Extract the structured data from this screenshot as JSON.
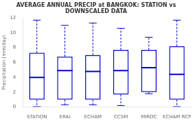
{
  "chart_data": {
    "type": "box",
    "title": "AVERAGE ANNUAL PRECIP at BANGKOK: STATION vs DOWNSCALED DATA",
    "ylabel": "Precipitation (mm/day)",
    "categories": [
      "STATION",
      "ERAI",
      "ECHAM",
      "CCSM",
      "MIROC",
      "ECHAM RCP"
    ],
    "boxes": [
      {
        "q1": 1.0,
        "median": 4.0,
        "q3": 7.3,
        "whislo": 0.05,
        "whishi": 11.7
      },
      {
        "q1": 1.0,
        "median": 4.9,
        "q3": 6.8,
        "whislo": 0.3,
        "whishi": 11.0
      },
      {
        "q1": 1.0,
        "median": 4.8,
        "q3": 7.0,
        "whislo": 0.3,
        "whishi": 11.3
      },
      {
        "q1": 1.7,
        "median": 4.9,
        "q3": 7.7,
        "whislo": 0.2,
        "whishi": 10.6
      },
      {
        "q1": 2.0,
        "median": 5.3,
        "q3": 7.7,
        "whislo": 1.8,
        "whishi": 9.4
      },
      {
        "q1": 1.0,
        "median": 4.4,
        "q3": 8.2,
        "whislo": 0.05,
        "whishi": 11.7
      }
    ],
    "color": "#0000cc",
    "ylim": [
      0,
      12
    ],
    "yticks": [
      0,
      2,
      4,
      6,
      8,
      10,
      12
    ],
    "grid": false
  }
}
